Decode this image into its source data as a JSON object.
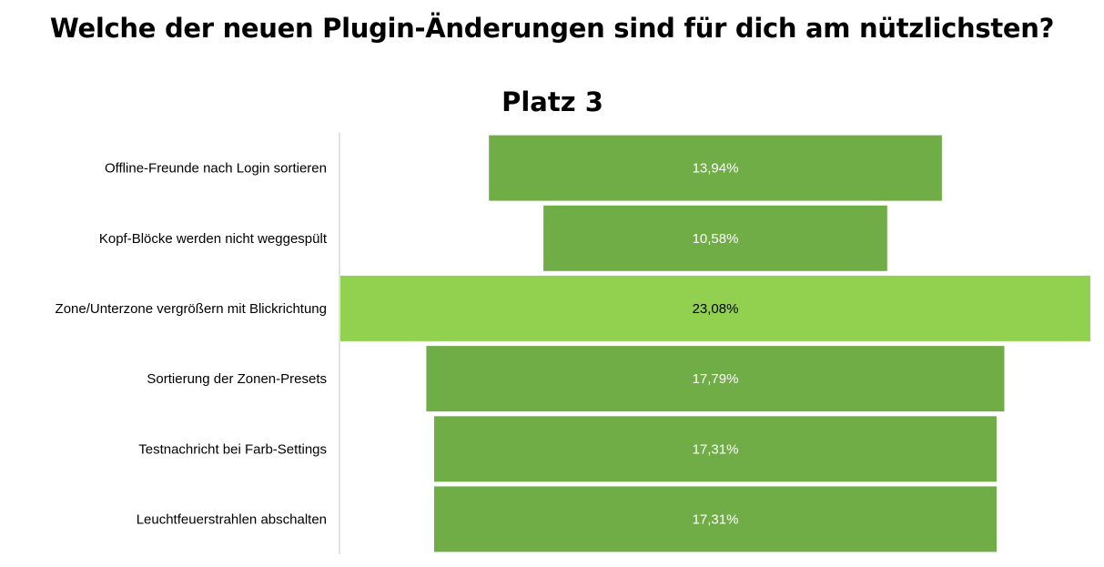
{
  "chart_data": {
    "type": "bar",
    "orientation": "horizontal-centered",
    "title": "Welche der neuen Plugin-Änderungen sind für dich am nützlichsten?",
    "subtitle": "Platz 3",
    "categories": [
      "Offline-Freunde nach Login sortieren",
      "Kopf-Blöcke werden nicht weggespült",
      "Zone/Unterzone vergrößern mit Blickrichtung",
      "Sortierung der Zonen-Presets",
      "Testnachricht bei Farb-Settings",
      "Leuchtfeuerstrahlen abschalten"
    ],
    "values": [
      13.94,
      10.58,
      23.08,
      17.79,
      17.31,
      17.31
    ],
    "data_labels": [
      "13,94%",
      "10,58%",
      "23,08%",
      "17,79%",
      "17,31%",
      "17,31%"
    ],
    "highlight_index": 2,
    "colors": {
      "bar": "#70ad47",
      "highlight": "#92d050",
      "label_on_bar": "#ffffff",
      "label_on_highlight": "#000000",
      "axis_line": "#d9d9d9"
    },
    "legend": "none",
    "grid": false
  }
}
